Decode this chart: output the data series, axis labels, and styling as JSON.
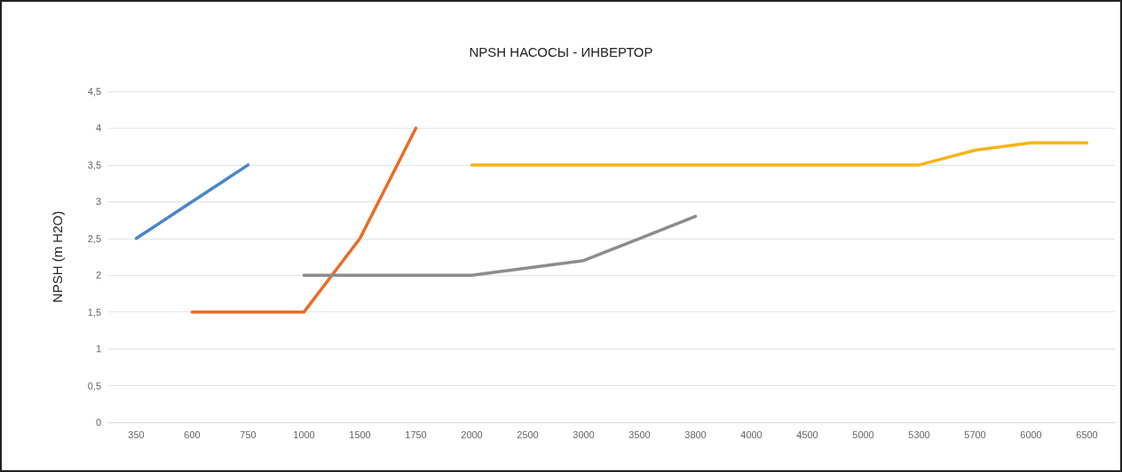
{
  "chart_data": {
    "type": "line",
    "title": "NPSH НАСОСЫ - ИНВЕРТОР",
    "ylabel": "NPSH (m H2O)",
    "categories": [
      "350",
      "600",
      "750",
      "1000",
      "1500",
      "1750",
      "2000",
      "2500",
      "3000",
      "3500",
      "3800",
      "4000",
      "4500",
      "5000",
      "5300",
      "5700",
      "6000",
      "6500"
    ],
    "series": [
      {
        "color": "#4a86c8",
        "values": [
          2.5,
          3.0,
          3.5,
          null,
          null,
          null,
          null,
          null,
          null,
          null,
          null,
          null,
          null,
          null,
          null,
          null,
          null,
          null
        ]
      },
      {
        "color": "#e96c28",
        "values": [
          null,
          1.5,
          1.5,
          1.5,
          2.5,
          4,
          null,
          null,
          null,
          null,
          null,
          null,
          null,
          null,
          null,
          null,
          null,
          null
        ]
      },
      {
        "color": "#8c8c8c",
        "values": [
          null,
          null,
          null,
          2,
          2,
          2,
          2,
          2.1,
          2.2,
          2.5,
          2.8,
          null,
          null,
          null,
          null,
          null,
          null,
          null
        ]
      },
      {
        "color": "#f5b417",
        "values": [
          null,
          null,
          null,
          null,
          null,
          null,
          3.5,
          3.5,
          3.5,
          3.5,
          3.5,
          3.5,
          3.5,
          3.5,
          3.5,
          3.7,
          3.8,
          3.8
        ]
      }
    ],
    "ylim": [
      0,
      4.5
    ],
    "yticks": [
      0,
      {
        "value": 0.5,
        "label": "0,5"
      },
      1,
      {
        "value": 1.5,
        "label": "1,5"
      },
      2,
      {
        "value": 2.5,
        "label": "2,5"
      },
      3,
      {
        "value": 3.5,
        "label": "3,5"
      },
      4,
      {
        "value": 4.5,
        "label": "4,5"
      }
    ],
    "grid": "y",
    "marker": "none",
    "line_style": "solid"
  }
}
